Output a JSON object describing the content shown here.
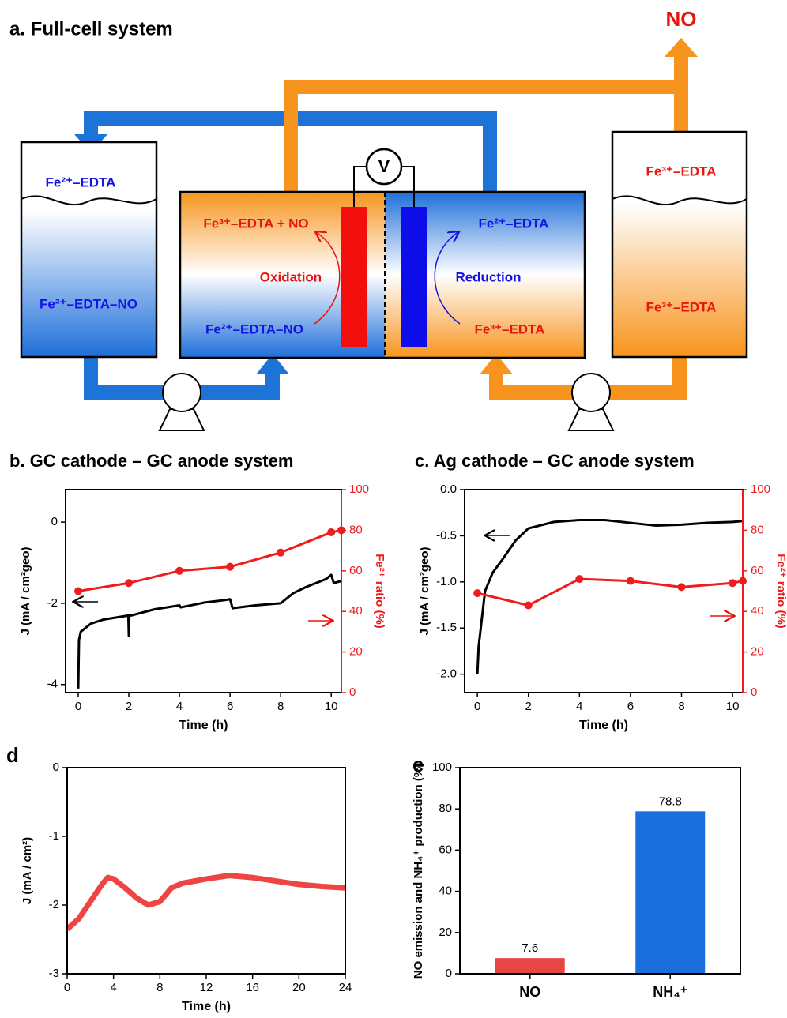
{
  "diagram": {
    "title": "a. Full-cell system",
    "no_out": "NO",
    "left_tank_top": "Fe²⁺–EDTA",
    "left_tank_bottom": "Fe²⁺–EDTA–NO",
    "anode_product": "Fe³⁺–EDTA + NO",
    "anode_process": "Oxidation",
    "anode_reactant": "Fe²⁺–EDTA–NO",
    "voltmeter": "V",
    "cathode_product": "Fe²⁺–EDTA",
    "cathode_process": "Reduction",
    "cathode_reactant": "Fe³⁺–EDTA",
    "right_tank_top": "Fe³⁺–EDTA",
    "right_tank_bottom": "Fe³⁺–EDTA"
  },
  "chart_data": [
    {
      "type": "line",
      "title": "b. GC cathode – GC anode system",
      "xlabel": "Time (h)",
      "ylabel": "J (mA / cm²geo)",
      "y2label": "Fe²⁺ ratio (%)",
      "xlim": [
        -0.5,
        10.4
      ],
      "xticks": [
        0,
        2,
        4,
        6,
        8,
        10
      ],
      "ylim": [
        -4.2,
        0.8
      ],
      "yticks": [
        -4,
        -2,
        0
      ],
      "y2lim": [
        0,
        100
      ],
      "y2ticks": [
        0,
        20,
        40,
        60,
        80,
        100
      ],
      "series": [
        {
          "color": "#000000",
          "markers": false,
          "x": [
            0,
            0.03,
            0.1,
            0.5,
            1,
            1.5,
            1.98,
            2,
            2.02,
            2.1,
            3,
            4,
            4.05,
            5,
            5.8,
            6,
            6.1,
            7,
            8,
            8.5,
            9,
            9.8,
            10,
            10.1,
            10.4
          ],
          "values": [
            -4.1,
            -2.9,
            -2.7,
            -2.5,
            -2.4,
            -2.35,
            -2.3,
            -2.8,
            -2.3,
            -2.3,
            -2.15,
            -2.05,
            -2.1,
            -1.98,
            -1.92,
            -1.9,
            -2.12,
            -2.05,
            -2.0,
            -1.75,
            -1.6,
            -1.4,
            -1.3,
            -1.5,
            -1.45
          ]
        },
        {
          "color": "#ee1c1c",
          "markers": true,
          "axis": "y2",
          "x": [
            0,
            2,
            4,
            6,
            8,
            10,
            10.4
          ],
          "values": [
            50,
            54,
            60,
            62,
            69,
            79,
            80
          ]
        }
      ]
    },
    {
      "type": "line",
      "title": "c. Ag cathode – GC anode system",
      "xlabel": "Time (h)",
      "ylabel": "J (mA / cm²geo)",
      "y2label": "Fe²⁺ ratio (%)",
      "xlim": [
        -0.5,
        10.4
      ],
      "xticks": [
        0,
        2,
        4,
        6,
        8,
        10
      ],
      "ylim": [
        -2.2,
        0
      ],
      "yticks": [
        {
          "value": -2,
          "label": "-2.0"
        },
        -1.5,
        {
          "value": -1,
          "label": "-1.0"
        },
        -0.5,
        {
          "value": 0,
          "label": "0.0"
        }
      ],
      "y2lim": [
        0,
        100
      ],
      "y2ticks": [
        0,
        20,
        40,
        60,
        80,
        100
      ],
      "series": [
        {
          "color": "#000000",
          "markers": false,
          "x": [
            0,
            0.05,
            0.3,
            0.6,
            1,
            1.5,
            2,
            3,
            4,
            5,
            6,
            7,
            8,
            9,
            10,
            10.4
          ],
          "values": [
            -2.0,
            -1.7,
            -1.1,
            -0.9,
            -0.75,
            -0.55,
            -0.42,
            -0.35,
            -0.33,
            -0.33,
            -0.36,
            -0.39,
            -0.38,
            -0.36,
            -0.35,
            -0.34
          ]
        },
        {
          "color": "#ee1c1c",
          "markers": true,
          "axis": "y2",
          "x": [
            0,
            2,
            4,
            6,
            8,
            10,
            10.4
          ],
          "values": [
            49,
            43,
            56,
            55,
            52,
            54,
            55
          ]
        }
      ]
    },
    {
      "type": "line",
      "title": "d",
      "xlabel": "Time (h)",
      "ylabel": "J (mA / cm²)",
      "xlim": [
        0,
        24
      ],
      "xticks": [
        0,
        4,
        8,
        12,
        16,
        20,
        24
      ],
      "ylim": [
        -3,
        0
      ],
      "yticks": [
        -3,
        -2,
        -1,
        0
      ],
      "series": [
        {
          "color": "#ee4444",
          "markers": false,
          "x": [
            0,
            1,
            2,
            3,
            3.5,
            4,
            5,
            6,
            7,
            8,
            9,
            10,
            12,
            14,
            16,
            18,
            20,
            22,
            24
          ],
          "values": [
            -2.35,
            -2.2,
            -1.95,
            -1.7,
            -1.6,
            -1.62,
            -1.75,
            -1.9,
            -2.0,
            -1.95,
            -1.75,
            -1.68,
            -1.62,
            -1.57,
            -1.6,
            -1.65,
            -1.7,
            -1.73,
            -1.75
          ]
        }
      ]
    },
    {
      "type": "bar",
      "title": "e",
      "ylabel": "NO emission and NH₄⁺ production (%)",
      "categories": [
        "NO",
        "NH₄⁺"
      ],
      "values": [
        7.6,
        78.8
      ],
      "colors": [
        "#e84545",
        "#1a6fdc"
      ],
      "ylim": [
        0,
        100
      ],
      "yticks": [
        0,
        20,
        40,
        60,
        80,
        100
      ]
    }
  ]
}
